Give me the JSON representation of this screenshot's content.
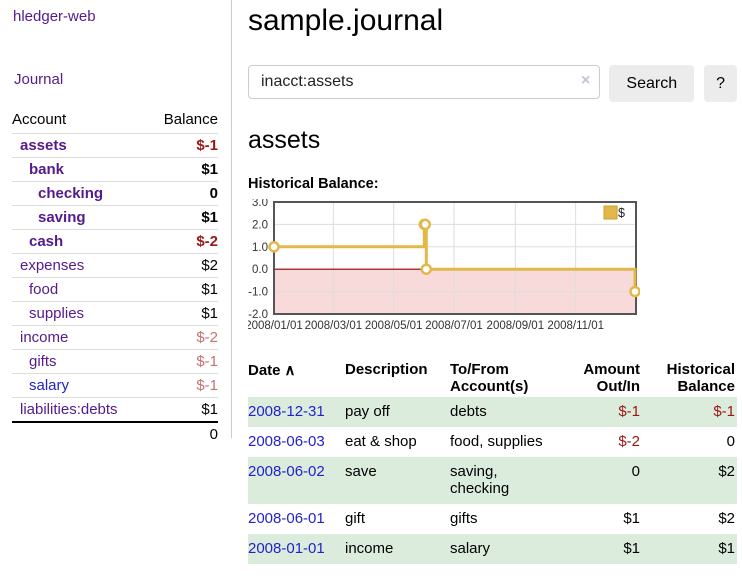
{
  "colors": {
    "link_purple": "#551a8b",
    "link_blue": "#2222cc",
    "negative_strong": "#9b1717",
    "negative_soft": "#c47272",
    "stripe_green": "#dcecdc",
    "button_bg": "#ececec"
  },
  "sidebar": {
    "brand": "hledger-web",
    "journal_link": "Journal",
    "accounts_table": {
      "headers": {
        "account": "Account",
        "balance": "Balance"
      },
      "rows": [
        {
          "name": "assets",
          "balance": "$-1",
          "level": 1,
          "bold": true,
          "tone": "neg-strong",
          "link": "purple"
        },
        {
          "name": "bank",
          "balance": "$1",
          "level": 2,
          "bold": true,
          "tone": "plain",
          "link": "purple"
        },
        {
          "name": "checking",
          "balance": "0",
          "level": 3,
          "bold": true,
          "tone": "plain",
          "link": "purple"
        },
        {
          "name": "saving",
          "balance": "$1",
          "level": 3,
          "bold": true,
          "tone": "plain",
          "link": "purple"
        },
        {
          "name": "cash",
          "balance": "$-2",
          "level": 2,
          "bold": true,
          "tone": "neg-strong",
          "link": "purple"
        },
        {
          "name": "expenses",
          "balance": "$2",
          "level": 1,
          "bold": false,
          "tone": "plain",
          "link": "purple"
        },
        {
          "name": "food",
          "balance": "$1",
          "level": 2,
          "bold": false,
          "tone": "plain",
          "link": "purple"
        },
        {
          "name": "supplies",
          "balance": "$1",
          "level": 2,
          "bold": false,
          "tone": "plain",
          "link": "purple"
        },
        {
          "name": "income",
          "balance": "$-2",
          "level": 1,
          "bold": false,
          "tone": "neg-soft",
          "link": "purple"
        },
        {
          "name": "gifts",
          "balance": "$-1",
          "level": 2,
          "bold": false,
          "tone": "neg-soft",
          "link": "purple"
        },
        {
          "name": "salary",
          "balance": "$-1",
          "level": 2,
          "bold": false,
          "tone": "neg-soft",
          "link": "blue"
        },
        {
          "name": "liabilities:debts",
          "balance": "$1",
          "level": 1,
          "bold": false,
          "tone": "plain",
          "link": "purple"
        }
      ],
      "total": "0"
    }
  },
  "main": {
    "title": "sample.journal",
    "search": {
      "value": "inacct:assets",
      "clear_icon": "×",
      "search_label": "Search",
      "help_label": "?"
    },
    "account_heading": "assets",
    "chart_label": "Historical Balance:",
    "transactions": {
      "headers": {
        "date": "Date",
        "sort_icon": "∧",
        "description": "Description",
        "tofrom_line1": "To/From",
        "tofrom_line2": "Account(s)",
        "amount_line1": "Amount",
        "amount_line2": "Out/In",
        "balance_line1": "Historical",
        "balance_line2": "Balance"
      },
      "rows": [
        {
          "date": "2008-12-31",
          "description": "pay off",
          "accounts": "debts",
          "amount": "$-1",
          "amount_tone": "neg-strong",
          "balance": "$-1",
          "balance_tone": "neg-strong",
          "striped": true
        },
        {
          "date": "2008-06-03",
          "description": "eat & shop",
          "accounts": "food, supplies",
          "amount": "$-2",
          "amount_tone": "neg-strong",
          "balance": "0",
          "balance_tone": "plain",
          "striped": false
        },
        {
          "date": "2008-06-02",
          "description": "save",
          "accounts": "saving, checking",
          "amount": "0",
          "amount_tone": "plain",
          "balance": "$2",
          "balance_tone": "plain",
          "striped": true
        },
        {
          "date": "2008-06-01",
          "description": "gift",
          "accounts": "gifts",
          "amount": "$1",
          "amount_tone": "plain",
          "balance": "$2",
          "balance_tone": "plain",
          "striped": false
        },
        {
          "date": "2008-01-01",
          "description": "income",
          "accounts": "salary",
          "amount": "$1",
          "amount_tone": "plain",
          "balance": "$1",
          "balance_tone": "plain",
          "striped": true
        }
      ]
    }
  },
  "chart_data": {
    "type": "line",
    "step": true,
    "title": "Historical Balance",
    "xlabel": "",
    "ylabel": "",
    "ylim": [
      -2,
      3
    ],
    "x_range": [
      "2008-01-01",
      "2009-01-01"
    ],
    "grid": true,
    "legend": {
      "label": "$",
      "position": "top-right"
    },
    "y_ticks": [
      {
        "label": "3.0",
        "value": 3
      },
      {
        "label": "2.0",
        "value": 2
      },
      {
        "label": "1.0",
        "value": 1
      },
      {
        "label": "0.0",
        "value": 0
      },
      {
        "label": "-1.0",
        "value": -1
      },
      {
        "label": "-2.0",
        "value": -2
      }
    ],
    "x_ticks": [
      {
        "label": "2008/01/01",
        "date": "2008-01-01"
      },
      {
        "label": "2008/03/01",
        "date": "2008-03-01"
      },
      {
        "label": "2008/05/01",
        "date": "2008-05-01"
      },
      {
        "label": "2008/07/01",
        "date": "2008-07-01"
      },
      {
        "label": "2008/09/01",
        "date": "2008-09-01"
      },
      {
        "label": "2008/11/01",
        "date": "2008-11-01"
      }
    ],
    "series": [
      {
        "name": "$",
        "points": [
          {
            "date": "2008-01-01",
            "value": 1
          },
          {
            "date": "2008-06-01",
            "value": 2
          },
          {
            "date": "2008-06-02",
            "value": 2
          },
          {
            "date": "2008-06-03",
            "value": 0
          },
          {
            "date": "2008-12-31",
            "value": -1
          }
        ]
      }
    ],
    "colors": {
      "line": "#e3b84a",
      "marker_fill": "#ffffff",
      "legend_border": "#c9a22a",
      "negative_region_fill": "#f9dada",
      "zero_line": "#8b0000",
      "grid": "#dddddd",
      "border": "#555555",
      "tick_text": "#333333"
    }
  }
}
